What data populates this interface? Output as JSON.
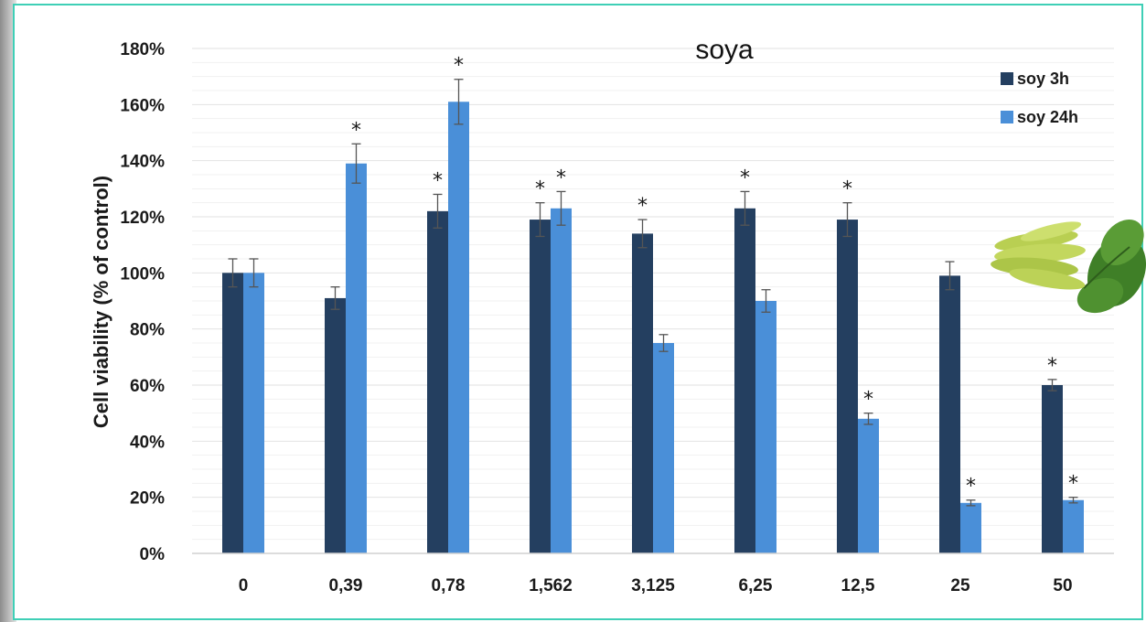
{
  "chart_data": {
    "type": "bar",
    "title": "soya",
    "xlabel": "",
    "ylabel": "Cell viability (% of control)",
    "categories": [
      "0",
      "0,39",
      "0,78",
      "1,562",
      "3,125",
      "6,25",
      "12,5",
      "25",
      "50"
    ],
    "series": [
      {
        "name": "soy 3h",
        "color": "#243f60",
        "values": [
          100,
          91,
          122,
          119,
          114,
          123,
          119,
          99,
          60
        ],
        "errors": [
          5,
          4,
          6,
          6,
          5,
          6,
          6,
          5,
          2
        ],
        "significant": [
          false,
          false,
          true,
          true,
          true,
          true,
          true,
          false,
          true
        ]
      },
      {
        "name": "soy 24h",
        "color": "#4a8fd8",
        "values": [
          100,
          139,
          161,
          123,
          75,
          90,
          48,
          18,
          19
        ],
        "errors": [
          5,
          7,
          8,
          6,
          3,
          4,
          2,
          1,
          1
        ],
        "significant": [
          false,
          true,
          true,
          true,
          false,
          false,
          true,
          true,
          true
        ]
      }
    ],
    "ylim": [
      0,
      180
    ],
    "yticks": [
      "0%",
      "20%",
      "40%",
      "60%",
      "80%",
      "100%",
      "120%",
      "140%",
      "160%",
      "180%"
    ],
    "ytick_values": [
      0,
      20,
      40,
      60,
      80,
      100,
      120,
      140,
      160,
      180
    ],
    "grid": true,
    "legend_position": "top-right",
    "significance_marker": "*",
    "image": "soybean-pods-and-leaf-icon"
  }
}
